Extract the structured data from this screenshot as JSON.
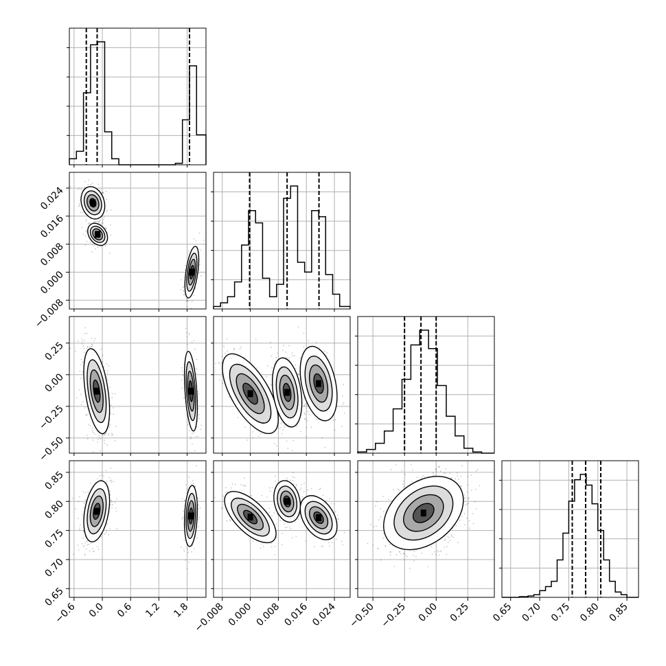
{
  "chart_data": {
    "type": "corner",
    "grid": true,
    "n_params": 4,
    "params": [
      {
        "id": "p1",
        "range": [
          -0.7,
          2.2
        ],
        "ticks": [
          -0.6,
          0.0,
          0.6,
          1.2,
          1.8
        ],
        "tick_labels": [
          "−0.6",
          "0.0",
          "0.6",
          "1.2",
          "1.8"
        ],
        "quantiles": [
          -0.34,
          -0.11,
          1.85
        ],
        "hist_edges": [
          -0.7,
          -0.55,
          -0.4,
          -0.25,
          -0.1,
          0.05,
          0.2,
          0.35,
          0.5,
          0.65,
          0.8,
          0.95,
          1.1,
          1.25,
          1.4,
          1.55,
          1.7,
          1.85,
          2.0,
          2.2
        ],
        "hist_counts": [
          0.04,
          0.09,
          0.48,
          0.8,
          0.82,
          0.22,
          0.04,
          0.0,
          0.0,
          0.0,
          0.0,
          0.0,
          0.0,
          0.0,
          0.0,
          0.01,
          0.3,
          0.66,
          0.2
        ]
      },
      {
        "id": "p2",
        "range": [
          -0.0105,
          0.0285
        ],
        "ticks": [
          -0.008,
          0.0,
          0.008,
          0.016,
          0.024
        ],
        "tick_labels": [
          "−0.008",
          "0.000",
          "0.008",
          "0.016",
          "0.024"
        ],
        "quantiles": [
          -0.0002,
          0.0105,
          0.0196
        ],
        "hist_edges": [
          -0.0105,
          -0.0085,
          -0.0065,
          -0.0045,
          -0.0025,
          -0.0005,
          0.0015,
          0.0035,
          0.0055,
          0.0075,
          0.0095,
          0.0115,
          0.0135,
          0.0155,
          0.0175,
          0.0195,
          0.0215,
          0.0235,
          0.0255,
          0.0285
        ],
        "hist_counts": [
          0.02,
          0.05,
          0.1,
          0.22,
          0.52,
          0.8,
          0.7,
          0.25,
          0.1,
          0.2,
          0.9,
          1.0,
          0.38,
          0.3,
          0.8,
          0.75,
          0.28,
          0.12,
          0.02
        ]
      },
      {
        "id": "p3",
        "range": [
          -0.62,
          0.46
        ],
        "ticks": [
          -0.5,
          -0.25,
          0.0,
          0.25
        ],
        "tick_labels": [
          "−0.50",
          "−0.25",
          "0.00",
          "0.25"
        ],
        "quantiles": [
          -0.25,
          -0.12,
          0.0
        ],
        "hist_edges": [
          -0.62,
          -0.55,
          -0.48,
          -0.41,
          -0.34,
          -0.27,
          -0.2,
          -0.13,
          -0.06,
          0.01,
          0.08,
          0.15,
          0.22,
          0.29,
          0.36,
          0.46
        ],
        "hist_counts": [
          0.01,
          0.03,
          0.08,
          0.18,
          0.36,
          0.6,
          0.88,
          1.0,
          0.85,
          0.55,
          0.3,
          0.14,
          0.04,
          0.01,
          0.0
        ]
      },
      {
        "id": "p4",
        "range": [
          0.635,
          0.87
        ],
        "ticks": [
          0.65,
          0.7,
          0.75,
          0.8,
          0.85
        ],
        "tick_labels": [
          "0.65",
          "0.70",
          "0.75",
          "0.80",
          "0.85"
        ],
        "quantiles": [
          0.756,
          0.779,
          0.805
        ],
        "hist_edges": [
          0.635,
          0.65,
          0.665,
          0.68,
          0.69,
          0.7,
          0.71,
          0.72,
          0.73,
          0.74,
          0.75,
          0.76,
          0.77,
          0.78,
          0.79,
          0.8,
          0.81,
          0.82,
          0.83,
          0.84,
          0.85,
          0.87
        ],
        "hist_counts": [
          0.0,
          0.0,
          0.005,
          0.01,
          0.02,
          0.05,
          0.08,
          0.12,
          0.28,
          0.48,
          0.72,
          0.88,
          0.92,
          0.84,
          0.7,
          0.5,
          0.28,
          0.12,
          0.04,
          0.02,
          0.0
        ]
      }
    ],
    "pairs": [
      {
        "x": 0,
        "y": 1,
        "clusters": [
          {
            "cx": -0.2,
            "cy": 0.0198,
            "sx": 0.12,
            "sy": 0.0022,
            "rho": -0.2,
            "w": 1.0
          },
          {
            "cx": -0.1,
            "cy": 0.0108,
            "sx": 0.1,
            "sy": 0.0015,
            "rho": -0.3,
            "w": 0.9
          },
          {
            "cx": 1.9,
            "cy": 0.0,
            "sx": 0.07,
            "sy": 0.0035,
            "rho": 0.5,
            "w": 1.0
          }
        ]
      },
      {
        "x": 0,
        "y": 2,
        "clusters": [
          {
            "cx": -0.12,
            "cy": -0.13,
            "sx": 0.13,
            "sy": 0.16,
            "rho": -0.45,
            "w": 2.0
          },
          {
            "cx": 1.88,
            "cy": -0.13,
            "sx": 0.065,
            "sy": 0.15,
            "rho": -0.4,
            "w": 1.0
          }
        ]
      },
      {
        "x": 0,
        "y": 3,
        "clusters": [
          {
            "cx": -0.12,
            "cy": 0.783,
            "sx": 0.13,
            "sy": 0.025,
            "rho": 0.35,
            "w": 2.0
          },
          {
            "cx": 1.88,
            "cy": 0.775,
            "sx": 0.065,
            "sy": 0.025,
            "rho": 0.2,
            "w": 1.0
          }
        ]
      },
      {
        "x": 1,
        "y": 2,
        "clusters": [
          {
            "cx": 0.0,
            "cy": -0.15,
            "sx": 0.0038,
            "sy": 0.15,
            "rho": -0.65,
            "w": 1.0
          },
          {
            "cx": 0.0105,
            "cy": -0.14,
            "sx": 0.002,
            "sy": 0.13,
            "rho": -0.3,
            "w": 1.0
          },
          {
            "cx": 0.0195,
            "cy": -0.07,
            "sx": 0.0025,
            "sy": 0.14,
            "rho": -0.35,
            "w": 1.0
          }
        ]
      },
      {
        "x": 1,
        "y": 3,
        "clusters": [
          {
            "cx": 0.0,
            "cy": 0.773,
            "sx": 0.0035,
            "sy": 0.021,
            "rho": -0.65,
            "w": 1.0
          },
          {
            "cx": 0.0105,
            "cy": 0.8,
            "sx": 0.0018,
            "sy": 0.017,
            "rho": -0.2,
            "w": 1.0
          },
          {
            "cx": 0.0195,
            "cy": 0.772,
            "sx": 0.0025,
            "sy": 0.018,
            "rho": -0.4,
            "w": 1.0
          }
        ]
      },
      {
        "x": 2,
        "y": 3,
        "clusters": [
          {
            "cx": -0.1,
            "cy": 0.78,
            "sx": 0.15,
            "sy": 0.03,
            "rho": 0.35,
            "w": 1.0
          }
        ]
      }
    ]
  }
}
